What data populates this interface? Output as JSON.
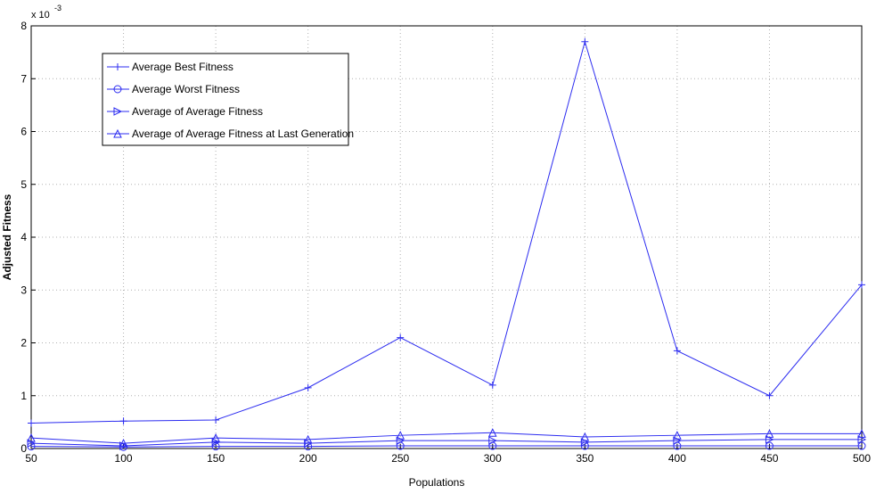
{
  "chart_data": {
    "type": "line",
    "x_label": "Populations",
    "y_label": "Adjusted Fitness",
    "y_scale_label": "x 10",
    "y_scale_exponent": "-3",
    "x": [
      50,
      100,
      150,
      200,
      250,
      300,
      350,
      400,
      450,
      500
    ],
    "xlim": [
      50,
      500
    ],
    "xticks": [
      50,
      100,
      150,
      200,
      250,
      300,
      350,
      400,
      450,
      500
    ],
    "ylim": [
      0,
      8
    ],
    "yticks": [
      0,
      1,
      2,
      3,
      4,
      5,
      6,
      7,
      8
    ],
    "grid": true,
    "legend": "upper left",
    "series": [
      {
        "name": "Average Best Fitness",
        "color": "#2b2bf0",
        "marker": "plus",
        "values": [
          0.48,
          0.52,
          0.54,
          1.15,
          2.1,
          1.2,
          7.7,
          1.85,
          1.0,
          3.1
        ]
      },
      {
        "name": "Average Worst Fitness",
        "color": "#2b2bf0",
        "marker": "circle",
        "values": [
          0.04,
          0.03,
          0.04,
          0.04,
          0.05,
          0.05,
          0.05,
          0.05,
          0.05,
          0.05
        ]
      },
      {
        "name": "Average of Average Fitness",
        "color": "#2b2bf0",
        "marker": "triangle-right",
        "values": [
          0.1,
          0.05,
          0.12,
          0.1,
          0.15,
          0.15,
          0.12,
          0.15,
          0.17,
          0.17
        ]
      },
      {
        "name": "Average of Average Fitness at Last Generation",
        "color": "#2b2bf0",
        "marker": "triangle-up",
        "values": [
          0.2,
          0.1,
          0.2,
          0.17,
          0.25,
          0.3,
          0.22,
          0.25,
          0.28,
          0.28
        ]
      }
    ]
  }
}
